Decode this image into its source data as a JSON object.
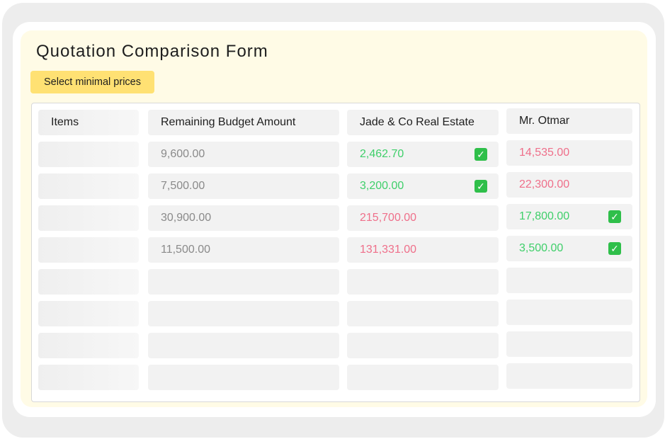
{
  "form": {
    "title": "Quotation Comparison Form",
    "select_minimal_label": "Select minimal prices"
  },
  "table": {
    "headers": {
      "items": "Items",
      "budget": "Remaining Budget Amount",
      "vendor1": "Jade & Co Real Estate",
      "vendor2": "Mr. Otmar"
    },
    "rows": [
      {
        "item": "",
        "budget": "9,600.00",
        "vendor1": "2,462.70",
        "vendor1_min": true,
        "vendor2": "14,535.00",
        "vendor2_min": false
      },
      {
        "item": "",
        "budget": "7,500.00",
        "vendor1": "3,200.00",
        "vendor1_min": true,
        "vendor2": "22,300.00",
        "vendor2_min": false
      },
      {
        "item": "",
        "budget": "30,900.00",
        "vendor1": "215,700.00",
        "vendor1_min": false,
        "vendor2": "17,800.00",
        "vendor2_min": true
      },
      {
        "item": "",
        "budget": "11,500.00",
        "vendor1": "131,331.00",
        "vendor1_min": false,
        "vendor2": "3,500.00",
        "vendor2_min": true
      },
      {
        "item": "",
        "budget": "",
        "vendor1": "",
        "vendor1_min": false,
        "vendor2": "",
        "vendor2_min": false
      },
      {
        "item": "",
        "budget": "",
        "vendor1": "",
        "vendor1_min": false,
        "vendor2": "",
        "vendor2_min": false
      },
      {
        "item": "",
        "budget": "",
        "vendor1": "",
        "vendor1_min": false,
        "vendor2": "",
        "vendor2_min": false
      },
      {
        "item": "",
        "budget": "",
        "vendor1": "",
        "vendor1_min": false,
        "vendor2": "",
        "vendor2_min": false
      }
    ]
  },
  "colors": {
    "accent_button": "#ffe173",
    "panel_bg": "#fffbe6",
    "min_price": "#3fcf6a",
    "higher_price": "#ef6f8a",
    "budget_text": "#8a8a8a",
    "check_bg": "#2fbf4a"
  },
  "icons": {
    "min_marker": "check-mark-icon"
  }
}
